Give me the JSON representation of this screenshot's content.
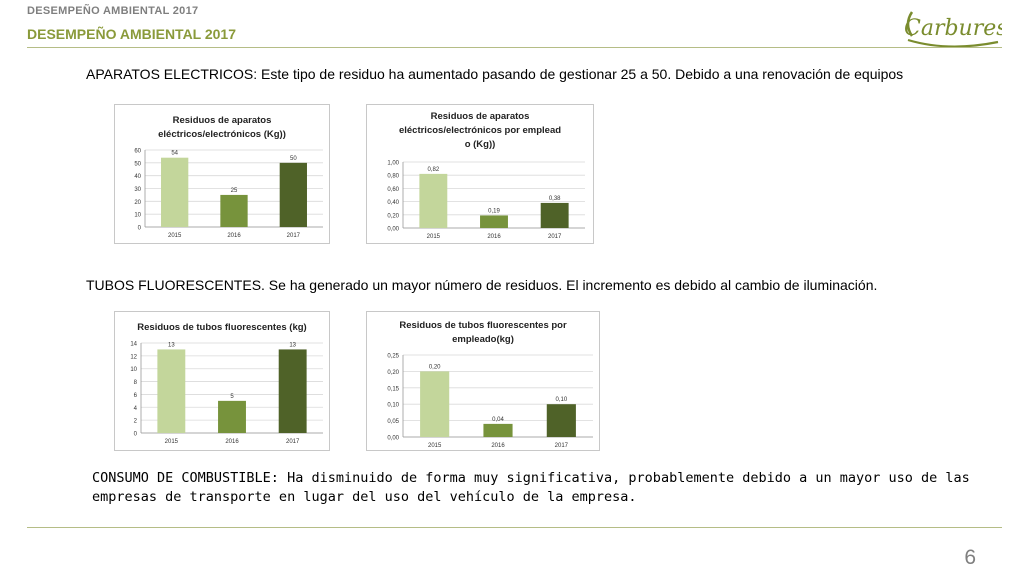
{
  "header": {
    "top_label": "DESEMPEÑO AMBIENTAL 2017",
    "title": "DESEMPEÑO AMBIENTAL 2017",
    "logo_text": "Carbures",
    "title_color": "#8a9a3a"
  },
  "paragraphs": {
    "aparatos": "APARATOS ELECTRICOS: Este tipo de residuo ha aumentado pasando de gestionar 25 a 50. Debido a una renovación de equipos",
    "tubos": "TUBOS FLUORESCENTES. Se ha generado un mayor número de residuos. El incremento es debido al cambio de iluminación.",
    "combustible": "CONSUMO DE COMBUSTIBLE: Ha disminuido de forma muy significativa, probablemente debido a un mayor uso de las empresas de transporte en lugar del uso del vehículo de la empresa."
  },
  "page_number": "6",
  "colors": [
    "#c3d69b",
    "#77933c",
    "#4f6228"
  ],
  "chart_data": [
    {
      "type": "bar",
      "title": "Residuos de aparatos eléctricos/electrónicos (Kg))",
      "categories": [
        "2015",
        "2016",
        "2017"
      ],
      "values": [
        54,
        25,
        50
      ],
      "labels": [
        "54",
        "25",
        "50"
      ],
      "ylim": [
        0,
        60
      ],
      "yticks": [
        "0",
        "10",
        "20",
        "30",
        "40",
        "50",
        "60"
      ],
      "grid": true
    },
    {
      "type": "bar",
      "title": "Residuos de aparatos eléctricos/electrónicos por empleado (Kg))",
      "categories": [
        "2015",
        "2016",
        "2017"
      ],
      "values": [
        0.82,
        0.19,
        0.38
      ],
      "labels": [
        "0,82",
        "0,19",
        "0,38"
      ],
      "ylim": [
        0,
        1.0
      ],
      "yticks": [
        "0,00",
        "0,20",
        "0,40",
        "0,60",
        "0,80",
        "1,00"
      ],
      "grid": true
    },
    {
      "type": "bar",
      "title": "Residuos de tubos fluorescentes (kg)",
      "categories": [
        "2015",
        "2016",
        "2017"
      ],
      "values": [
        13,
        5,
        13
      ],
      "labels": [
        "13",
        "5",
        "13"
      ],
      "ylim": [
        0,
        14
      ],
      "yticks": [
        "0",
        "2",
        "4",
        "6",
        "8",
        "10",
        "12",
        "14"
      ],
      "grid": true
    },
    {
      "type": "bar",
      "title": "Residuos de tubos fluorescentes  por empleado(kg)",
      "categories": [
        "2015",
        "2016",
        "2017"
      ],
      "values": [
        0.2,
        0.04,
        0.1
      ],
      "labels": [
        "0,20",
        "0,04",
        "0,10"
      ],
      "ylim": [
        0,
        0.25
      ],
      "yticks": [
        "0,00",
        "0,05",
        "0,10",
        "0,15",
        "0,20",
        "0,25"
      ],
      "grid": true
    }
  ]
}
